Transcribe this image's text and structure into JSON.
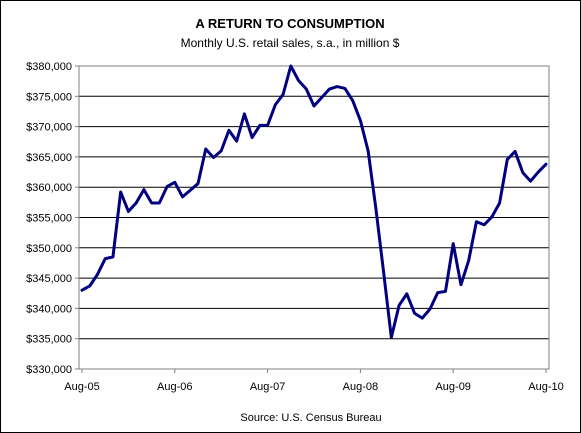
{
  "chart_data": {
    "type": "line",
    "title": "A RETURN TO CONSUMPTION",
    "subtitle": "Monthly U.S. retail sales, s.a., in million $",
    "source": "Source: U.S. Census Bureau",
    "ylim": [
      330000,
      380000
    ],
    "y_ticks": [
      330000,
      335000,
      340000,
      345000,
      350000,
      355000,
      360000,
      365000,
      370000,
      375000,
      380000
    ],
    "y_tick_labels": [
      "$330,000",
      "$335,000",
      "$340,000",
      "$345,000",
      "$350,000",
      "$355,000",
      "$360,000",
      "$365,000",
      "$370,000",
      "$375,000",
      "$380,000"
    ],
    "x_tick_labels": [
      "Aug-05",
      "Aug-06",
      "Aug-07",
      "Aug-08",
      "Aug-09",
      "Aug-10"
    ],
    "grid": "horizontal",
    "line_color": "#000080",
    "series": [
      {
        "values": [
          343000,
          343700,
          345600,
          348200,
          348500,
          359200,
          356000,
          357400,
          359600,
          357400,
          357400,
          360100,
          360800,
          358400,
          359500,
          360600,
          366300,
          364900,
          366000,
          369400,
          367600,
          372100,
          368200,
          370200,
          370200,
          373600,
          375300,
          380000,
          377600,
          376200,
          373400,
          374800,
          376200,
          376600,
          376300,
          374300,
          371000,
          366000,
          356500,
          346000,
          335200,
          340500,
          342400,
          339200,
          338400,
          339900,
          342600,
          342800,
          350700,
          343900,
          347900,
          354300,
          353800,
          355100,
          357400,
          364600,
          365900,
          362400,
          361000,
          362500,
          363800
        ]
      }
    ]
  }
}
